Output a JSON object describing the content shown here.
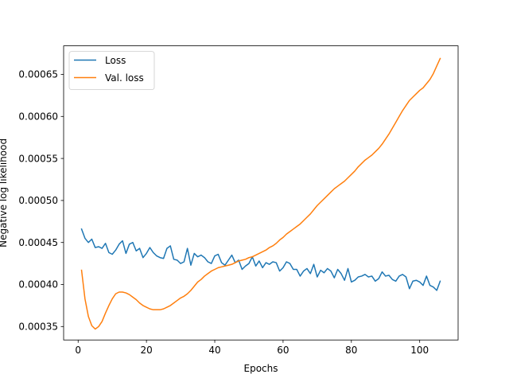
{
  "chart_data": {
    "type": "line",
    "title": "",
    "xlabel": "Epochs",
    "ylabel": "Negative log likelihood",
    "xlim": [
      -4.25,
      111.25
    ],
    "ylim": [
      0.000334,
      0.000684
    ],
    "x_ticks": [
      0,
      20,
      40,
      60,
      80,
      100
    ],
    "x_tick_labels": [
      "0",
      "20",
      "40",
      "60",
      "80",
      "100"
    ],
    "y_ticks": [
      0.00035,
      0.0004,
      0.00045,
      0.0005,
      0.00055,
      0.0006,
      0.00065
    ],
    "y_tick_labels": [
      "0.00035",
      "0.00040",
      "0.00045",
      "0.00050",
      "0.00055",
      "0.00060",
      "0.00065"
    ],
    "grid": false,
    "legend_position": "upper-left",
    "series": [
      {
        "name": "Loss",
        "color": "#1f77b4",
        "x": [
          1,
          2,
          3,
          4,
          5,
          6,
          7,
          8,
          9,
          10,
          11,
          12,
          13,
          14,
          15,
          16,
          17,
          18,
          19,
          20,
          21,
          22,
          23,
          24,
          25,
          26,
          27,
          28,
          29,
          30,
          31,
          32,
          33,
          34,
          35,
          36,
          37,
          38,
          39,
          40,
          41,
          42,
          43,
          44,
          45,
          46,
          47,
          48,
          49,
          50,
          51,
          52,
          53,
          54,
          55,
          56,
          57,
          58,
          59,
          60,
          61,
          62,
          63,
          64,
          65,
          66,
          67,
          68,
          69,
          70,
          71,
          72,
          73,
          74,
          75,
          76,
          77,
          78,
          79,
          80,
          81,
          82,
          83,
          84,
          85,
          86,
          87,
          88,
          89,
          90,
          91,
          92,
          93,
          94,
          95,
          96,
          97,
          98,
          99,
          100,
          101,
          102,
          103,
          104,
          105,
          106
        ],
        "values": [
          0.000466,
          0.000455,
          0.00045,
          0.000454,
          0.000444,
          0.000445,
          0.000443,
          0.000449,
          0.000438,
          0.000436,
          0.000441,
          0.000448,
          0.000452,
          0.000437,
          0.000448,
          0.00045,
          0.00044,
          0.000443,
          0.000432,
          0.000437,
          0.000444,
          0.000438,
          0.000434,
          0.000432,
          0.000431,
          0.000443,
          0.000446,
          0.00043,
          0.000429,
          0.000425,
          0.000427,
          0.000443,
          0.000423,
          0.000437,
          0.000433,
          0.000435,
          0.000432,
          0.000427,
          0.000425,
          0.000434,
          0.000436,
          0.000426,
          0.000423,
          0.000429,
          0.000435,
          0.000426,
          0.000429,
          0.000418,
          0.000422,
          0.000425,
          0.000433,
          0.000422,
          0.000428,
          0.00042,
          0.000426,
          0.000424,
          0.000427,
          0.000426,
          0.000416,
          0.00042,
          0.000427,
          0.000425,
          0.000418,
          0.000418,
          0.00041,
          0.000416,
          0.000419,
          0.000413,
          0.000424,
          0.000409,
          0.000417,
          0.000414,
          0.000419,
          0.000416,
          0.000408,
          0.000418,
          0.000413,
          0.000405,
          0.000419,
          0.000403,
          0.000405,
          0.000409,
          0.00041,
          0.000412,
          0.000409,
          0.00041,
          0.000404,
          0.000407,
          0.000415,
          0.00041,
          0.000411,
          0.000406,
          0.000404,
          0.00041,
          0.000412,
          0.000409,
          0.000395,
          0.000404,
          0.000405,
          0.000403,
          0.000399,
          0.00041,
          0.000399,
          0.000397,
          0.000393,
          0.000404
        ]
      },
      {
        "name": "Val. loss",
        "color": "#ff7f0e",
        "x": [
          1,
          2,
          3,
          4,
          5,
          6,
          7,
          8,
          9,
          10,
          11,
          12,
          13,
          14,
          15,
          16,
          17,
          18,
          19,
          20,
          21,
          22,
          23,
          24,
          25,
          26,
          27,
          28,
          29,
          30,
          31,
          32,
          33,
          34,
          35,
          36,
          37,
          38,
          39,
          40,
          41,
          42,
          43,
          44,
          45,
          46,
          47,
          48,
          49,
          50,
          51,
          52,
          53,
          54,
          55,
          56,
          57,
          58,
          59,
          60,
          61,
          62,
          63,
          64,
          65,
          66,
          67,
          68,
          69,
          70,
          71,
          72,
          73,
          74,
          75,
          76,
          77,
          78,
          79,
          80,
          81,
          82,
          83,
          84,
          85,
          86,
          87,
          88,
          89,
          90,
          91,
          92,
          93,
          94,
          95,
          96,
          97,
          98,
          99,
          100,
          101,
          102,
          103,
          104,
          105,
          106
        ],
        "values": [
          0.000417,
          0.000383,
          0.000362,
          0.000351,
          0.000347,
          0.00035,
          0.000356,
          0.000366,
          0.000375,
          0.000383,
          0.000389,
          0.000391,
          0.000391,
          0.00039,
          0.000388,
          0.000385,
          0.000382,
          0.000378,
          0.000375,
          0.000373,
          0.000371,
          0.00037,
          0.00037,
          0.00037,
          0.000371,
          0.000373,
          0.000375,
          0.000378,
          0.000381,
          0.000384,
          0.000386,
          0.000389,
          0.000393,
          0.000398,
          0.000403,
          0.000406,
          0.00041,
          0.000413,
          0.000416,
          0.000418,
          0.00042,
          0.000421,
          0.000422,
          0.000423,
          0.000424,
          0.000426,
          0.000428,
          0.000429,
          0.00043,
          0.000432,
          0.000433,
          0.000435,
          0.000437,
          0.000439,
          0.000441,
          0.000444,
          0.000446,
          0.000449,
          0.000453,
          0.000456,
          0.00046,
          0.000463,
          0.000466,
          0.000469,
          0.000472,
          0.000476,
          0.00048,
          0.000484,
          0.000489,
          0.000494,
          0.000498,
          0.000502,
          0.000506,
          0.00051,
          0.000514,
          0.000517,
          0.00052,
          0.000523,
          0.000527,
          0.000531,
          0.000535,
          0.00054,
          0.000544,
          0.000548,
          0.000551,
          0.000554,
          0.000558,
          0.000562,
          0.000567,
          0.000573,
          0.000579,
          0.000586,
          0.000593,
          0.0006,
          0.000607,
          0.000613,
          0.000619,
          0.000623,
          0.000627,
          0.000631,
          0.000634,
          0.000639,
          0.000644,
          0.000651,
          0.00066,
          0.000669
        ]
      }
    ]
  }
}
